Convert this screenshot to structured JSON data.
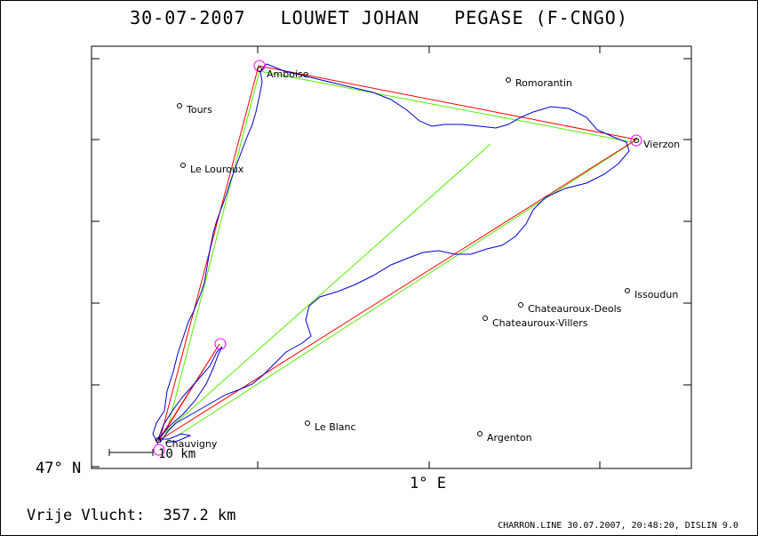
{
  "title": "30-07-2007   LOUWET JOHAN   PEGASE (F-CNGO)",
  "axes": {
    "lat_label": "47° N",
    "lon_label": "1° E"
  },
  "scale_bar_label": "10 km",
  "cities": [
    {
      "name": "Amboise"
    },
    {
      "name": "Romorantin"
    },
    {
      "name": "Tours"
    },
    {
      "name": "Le Louroux"
    },
    {
      "name": "Vierzon"
    },
    {
      "name": "Issoudun"
    },
    {
      "name": "Chateauroux-Deols"
    },
    {
      "name": "Chateauroux-Villers"
    },
    {
      "name": "Le Blanc"
    },
    {
      "name": "Argenton"
    },
    {
      "name": "Chauvigny"
    }
  ],
  "distance_text": "Vrije Vlucht:  357.2 km",
  "footer_text": "CHARRON.LINE 30.07.2007, 20:48:20, DISLIN 9.0",
  "colors": {
    "track": "#0000cc",
    "task": "#ff0000",
    "optimized": "#55ee00",
    "turnpoint": "#ff00ff"
  }
}
